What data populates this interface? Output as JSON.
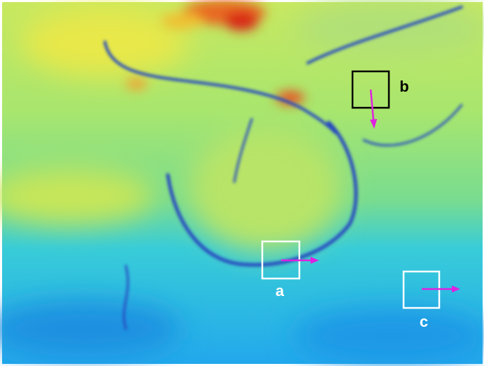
{
  "annotations": [
    {
      "label": "a"
    },
    {
      "label": "b"
    },
    {
      "label": "c"
    }
  ]
}
